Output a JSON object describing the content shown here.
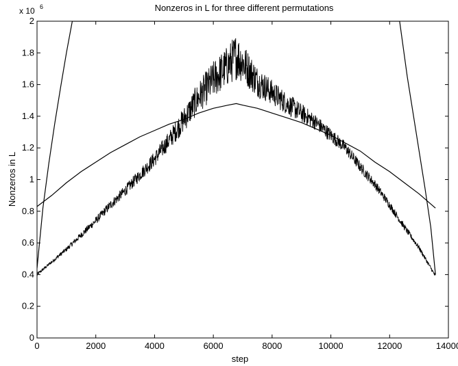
{
  "chart_data": {
    "type": "line",
    "title": "Nonzeros in L for three different permutations",
    "xlabel": "step",
    "ylabel": "Nonzeros in L",
    "y_exponent_label": "x 10",
    "y_exponent_power": "6",
    "xlim": [
      0,
      14000
    ],
    "ylim": [
      0,
      2
    ],
    "xticks": [
      0,
      2000,
      4000,
      6000,
      8000,
      10000,
      12000,
      14000
    ],
    "xtick_labels": [
      "0",
      "2000",
      "4000",
      "6000",
      "8000",
      "10000",
      "12000",
      "14000"
    ],
    "yticks": [
      0,
      0.2,
      0.4,
      0.6,
      0.8,
      1,
      1.2,
      1.4,
      1.6,
      1.8,
      2
    ],
    "ytick_labels": [
      "0",
      "0.2",
      "0.4",
      "0.6",
      "0.8",
      "1",
      "1.2",
      "1.4",
      "1.6",
      "1.8",
      "2"
    ],
    "grid": false,
    "line_color": "#000000",
    "series": [
      {
        "style": "smooth",
        "x": [
          0,
          500,
          1000,
          1500,
          2000,
          2500,
          3000,
          3500,
          4000,
          4500,
          5000,
          5500,
          6000,
          6500,
          6780,
          7000,
          7500,
          8000,
          8500,
          9000,
          9500,
          10000,
          10500,
          11000,
          11500,
          12000,
          12500,
          13000,
          13560
        ],
        "y": [
          0.83,
          0.9,
          0.98,
          1.05,
          1.11,
          1.17,
          1.22,
          1.27,
          1.31,
          1.35,
          1.38,
          1.42,
          1.45,
          1.47,
          1.48,
          1.47,
          1.45,
          1.42,
          1.39,
          1.36,
          1.32,
          1.28,
          1.23,
          1.18,
          1.11,
          1.05,
          0.98,
          0.91,
          0.82
        ]
      },
      {
        "style": "noisy",
        "x": [
          0,
          500,
          1000,
          1500,
          2000,
          2500,
          3000,
          3500,
          4000,
          4500,
          5000,
          5500,
          6000,
          6500,
          6780,
          7000,
          7500,
          8000,
          8500,
          9000,
          9500,
          10000,
          10500,
          11000,
          11500,
          12000,
          12500,
          13000,
          13560
        ],
        "y": [
          0.4,
          0.48,
          0.56,
          0.65,
          0.74,
          0.84,
          0.93,
          1.03,
          1.13,
          1.25,
          1.38,
          1.52,
          1.63,
          1.72,
          1.78,
          1.74,
          1.62,
          1.55,
          1.48,
          1.42,
          1.36,
          1.28,
          1.2,
          1.08,
          0.97,
          0.84,
          0.7,
          0.57,
          0.39
        ],
        "noise_amplitude": [
          0.01,
          0.01,
          0.015,
          0.02,
          0.025,
          0.03,
          0.035,
          0.04,
          0.05,
          0.06,
          0.08,
          0.1,
          0.12,
          0.13,
          0.15,
          0.13,
          0.1,
          0.08,
          0.07,
          0.06,
          0.05,
          0.045,
          0.04,
          0.035,
          0.03,
          0.025,
          0.02,
          0.015,
          0.01
        ]
      },
      {
        "style": "steep",
        "x": [
          0,
          200,
          400,
          600,
          800,
          1000,
          1200,
          12340,
          12600,
          12900,
          13200,
          13400,
          13560
        ],
        "y": [
          0.44,
          0.82,
          1.1,
          1.35,
          1.58,
          1.8,
          2.0,
          2.0,
          1.65,
          1.3,
          0.95,
          0.7,
          0.4
        ]
      }
    ]
  }
}
